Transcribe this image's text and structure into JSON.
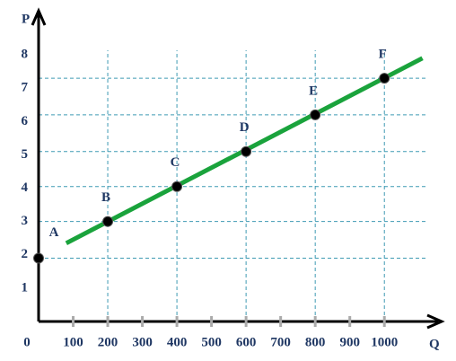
{
  "chart_data": {
    "type": "scatter",
    "x_label": "Q",
    "y_label": "P",
    "xlim": [
      0,
      1150
    ],
    "ylim": [
      0,
      9
    ],
    "xticks": [
      0,
      100,
      200,
      300,
      400,
      500,
      600,
      700,
      800,
      900,
      1000
    ],
    "yticks": [
      1,
      2,
      3,
      4,
      5,
      6,
      7,
      8
    ],
    "points": {
      "labels": [
        "A",
        "B",
        "C",
        "D",
        "E",
        "F"
      ],
      "x": [
        0,
        200,
        400,
        600,
        800,
        1000
      ],
      "values": [
        1.9,
        3,
        4.05,
        5.1,
        6.2,
        7.3
      ],
      "color": "#000000"
    },
    "line": {
      "x": [
        80,
        1110
      ],
      "values": [
        2.35,
        7.9
      ],
      "color": "#1aa33c"
    }
  }
}
